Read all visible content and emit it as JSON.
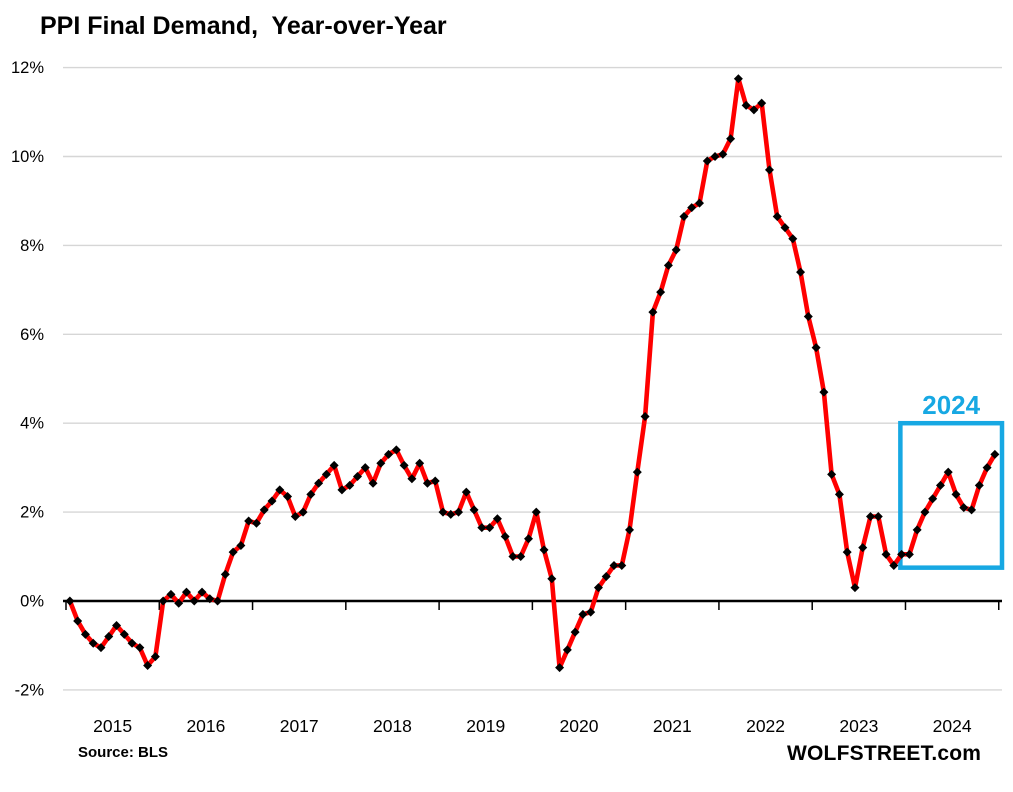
{
  "title": "PPI Final Demand,  Year-over-Year",
  "source_label": "Source: BLS",
  "branding": "WOLFSTREET.com",
  "colors": {
    "line": "#FF0000",
    "marker": "#000000",
    "annotation": "#17A8E3",
    "gridline": "#D6D6D6",
    "axis": "#000000",
    "text": "#000000"
  },
  "chart_data": {
    "type": "line",
    "title": "PPI Final Demand, Year-over-Year",
    "xlabel": "",
    "ylabel": "",
    "y_unit": "%",
    "ylim": [
      -2,
      12
    ],
    "grid": "horizontal",
    "legend": false,
    "x_tick_labels": [
      "2015",
      "2016",
      "2017",
      "2018",
      "2019",
      "2020",
      "2021",
      "2022",
      "2023",
      "2024"
    ],
    "y_ticks": [
      {
        "label": "12%",
        "value": 12
      },
      {
        "label": "10%",
        "value": 10
      },
      {
        "label": "8%",
        "value": 8
      },
      {
        "label": "6%",
        "value": 6
      },
      {
        "label": "4%",
        "value": 4
      },
      {
        "label": "2%",
        "value": 2
      },
      {
        "label": "0%",
        "value": 0
      },
      {
        "label": "-2%",
        "value": -2
      }
    ],
    "series": [
      {
        "name": "PPI Final Demand year-over-year % change, monthly",
        "values_by_year": {
          "2015": [
            0.0,
            -0.45,
            -0.75,
            -0.95,
            -1.05,
            -0.8,
            -0.55,
            -0.75,
            -0.95,
            -1.05,
            -1.45,
            -1.25
          ],
          "2016": [
            0.0,
            0.15,
            -0.05,
            0.2,
            0.0,
            0.2,
            0.05,
            0.0,
            0.6,
            1.1,
            1.25,
            1.8
          ],
          "2017": [
            1.75,
            2.05,
            2.25,
            2.5,
            2.35,
            1.9,
            2.0,
            2.4,
            2.65,
            2.85,
            3.05,
            2.5
          ],
          "2018": [
            2.6,
            2.8,
            3.0,
            2.65,
            3.1,
            3.3,
            3.4,
            3.05,
            2.75,
            3.1,
            2.65,
            2.7
          ],
          "2019": [
            2.0,
            1.95,
            2.0,
            2.45,
            2.05,
            1.65,
            1.65,
            1.85,
            1.45,
            1.0,
            1.0,
            1.4
          ],
          "2020": [
            2.0,
            1.15,
            0.5,
            -1.5,
            -1.1,
            -0.7,
            -0.3,
            -0.25,
            0.3,
            0.55,
            0.8,
            0.8
          ],
          "2021": [
            1.6,
            2.9,
            4.15,
            6.5,
            6.95,
            7.55,
            7.9,
            8.65,
            8.85,
            8.95,
            9.9,
            10.0
          ],
          "2022": [
            10.05,
            10.4,
            11.75,
            11.15,
            11.05,
            11.2,
            9.7,
            8.65,
            8.4,
            8.15,
            7.4,
            6.4
          ],
          "2023": [
            5.7,
            4.7,
            2.85,
            2.4,
            1.1,
            0.3,
            1.2,
            1.9,
            1.9,
            1.05,
            0.8,
            1.05
          ],
          "2024": [
            1.05,
            1.6,
            2.0,
            2.3,
            2.6,
            2.9,
            2.4,
            2.1,
            2.05,
            2.6,
            3.0,
            3.3
          ]
        }
      }
    ],
    "annotation_box": {
      "label": "2024",
      "covers_months": "Jan 2024 - Dec 2024",
      "y_range": [
        0.75,
        4.0
      ]
    }
  }
}
